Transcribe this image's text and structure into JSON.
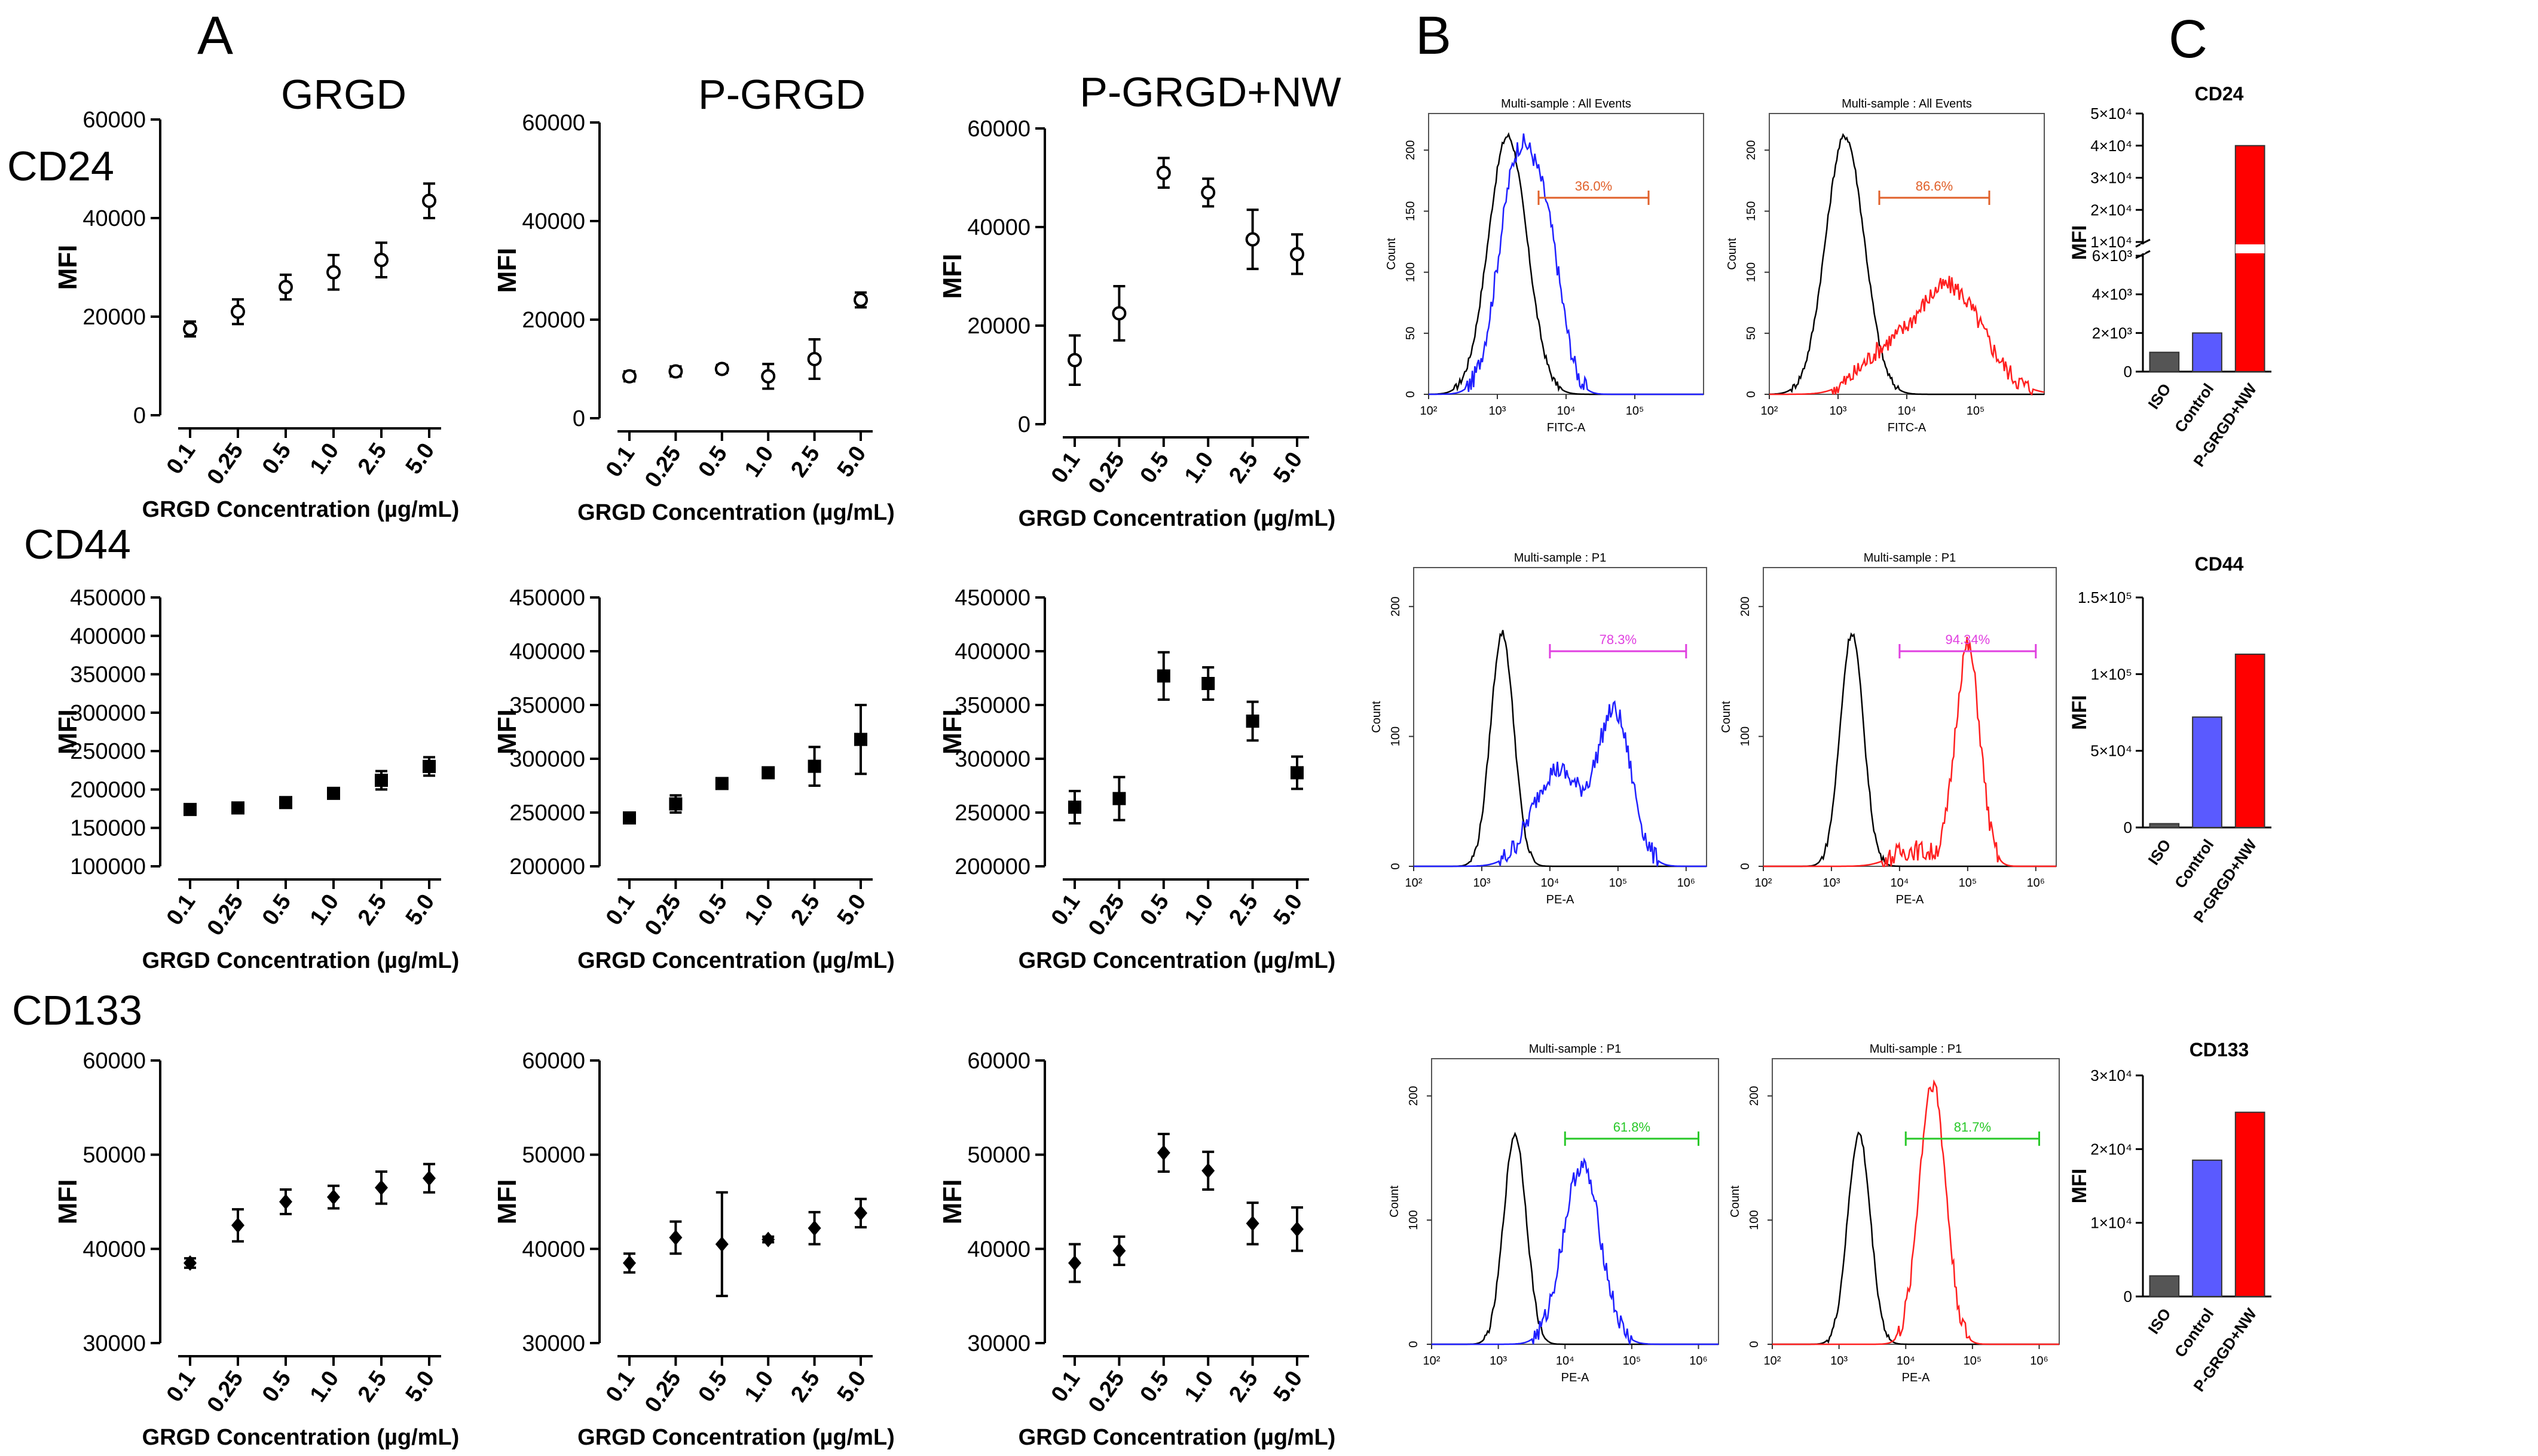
{
  "panel_letters": {
    "a": "A",
    "b": "B",
    "c": "C"
  },
  "column_titles": [
    "GRGD",
    "P-GRGD",
    "P-GRGD+NW"
  ],
  "row_labels": [
    "CD24",
    "CD44",
    "CD133"
  ],
  "colors": {
    "iso": "#555555",
    "control": "#5a5aff",
    "pgrgd_nw": "#ff0000",
    "blue_hist": "#1f1fff",
    "red_hist": "#ff1f1f",
    "gate_orange": "#e0602a",
    "gate_magenta": "#e040e0",
    "gate_green": "#28c828"
  },
  "chart_data": [
    {
      "id": "a-cd24-grgd",
      "type": "scatter",
      "marker": "open-circle",
      "title": "GRGD",
      "xlabel": "GRGD Concentration (µg/mL)",
      "ylabel": "MFI",
      "categories": [
        "0.1",
        "0.25",
        "0.5",
        "1.0",
        "2.5",
        "5.0"
      ],
      "values": [
        17500,
        21000,
        26000,
        29000,
        31500,
        43500
      ],
      "errors": [
        1500,
        2500,
        2500,
        3500,
        3500,
        3500
      ],
      "ylim": [
        0,
        60000
      ],
      "yticks": [
        0,
        20000,
        40000,
        60000
      ],
      "ytick_labels": [
        "0",
        "20000",
        "40000",
        "60000"
      ]
    },
    {
      "id": "a-cd24-pgrgd",
      "type": "scatter",
      "marker": "open-circle",
      "title": "P-GRGD",
      "xlabel": "GRGD Concentration (µg/mL)",
      "ylabel": "MFI",
      "categories": [
        "0.1",
        "0.25",
        "0.5",
        "1.0",
        "2.5",
        "5.0"
      ],
      "values": [
        8500,
        9500,
        10000,
        8500,
        12000,
        24000
      ],
      "errors": [
        1000,
        1000,
        800,
        2500,
        4000,
        1500
      ],
      "ylim": [
        0,
        60000
      ],
      "yticks": [
        0,
        20000,
        40000,
        60000
      ],
      "ytick_labels": [
        "0",
        "20000",
        "40000",
        "60000"
      ]
    },
    {
      "id": "a-cd24-pgrgdnw",
      "type": "scatter",
      "marker": "open-circle",
      "title": "P-GRGD+NW",
      "xlabel": "GRGD Concentration (µg/mL)",
      "ylabel": "MFI",
      "categories": [
        "0.1",
        "0.25",
        "0.5",
        "1.0",
        "2.5",
        "5.0"
      ],
      "values": [
        13000,
        22500,
        51000,
        47000,
        37500,
        34500
      ],
      "errors": [
        5000,
        5500,
        3000,
        2800,
        6000,
        4000
      ],
      "ylim": [
        0,
        60000
      ],
      "yticks": [
        0,
        20000,
        40000,
        60000
      ],
      "ytick_labels": [
        "0",
        "20000",
        "40000",
        "60000"
      ]
    },
    {
      "id": "a-cd44-grgd",
      "type": "scatter",
      "marker": "filled-square",
      "xlabel": "GRGD Concentration (µg/mL)",
      "ylabel": "MFI",
      "categories": [
        "0.1",
        "0.25",
        "0.5",
        "1.0",
        "2.5",
        "5.0"
      ],
      "values": [
        174000,
        176000,
        183000,
        195000,
        212000,
        230000
      ],
      "errors": [
        3000,
        6000,
        3000,
        6000,
        12000,
        12000
      ],
      "ylim": [
        100000,
        450000
      ],
      "yticks": [
        100000,
        150000,
        200000,
        250000,
        300000,
        350000,
        400000,
        450000
      ],
      "ytick_labels": [
        "100000",
        "150000",
        "200000",
        "250000",
        "300000",
        "350000",
        "400000",
        "450000"
      ]
    },
    {
      "id": "a-cd44-pgrgd",
      "type": "scatter",
      "marker": "filled-square",
      "xlabel": "GRGD Concentration (µg/mL)",
      "ylabel": "MFI",
      "categories": [
        "0.1",
        "0.25",
        "0.5",
        "1.0",
        "2.5",
        "5.0"
      ],
      "values": [
        245000,
        258000,
        277000,
        287000,
        293000,
        318000
      ],
      "errors": [
        3000,
        8000,
        3000,
        3000,
        18000,
        32000
      ],
      "ylim": [
        200000,
        450000
      ],
      "yticks": [
        200000,
        250000,
        300000,
        350000,
        400000,
        450000
      ],
      "ytick_labels": [
        "200000",
        "250000",
        "300000",
        "350000",
        "400000",
        "450000"
      ]
    },
    {
      "id": "a-cd44-pgrgdnw",
      "type": "scatter",
      "marker": "filled-square",
      "xlabel": "GRGD Concentration (µg/mL)",
      "ylabel": "MFI",
      "categories": [
        "0.1",
        "0.25",
        "0.5",
        "1.0",
        "2.5",
        "5.0"
      ],
      "values": [
        255000,
        263000,
        377000,
        370000,
        335000,
        287000
      ],
      "errors": [
        15000,
        20000,
        22000,
        15000,
        18000,
        15000
      ],
      "ylim": [
        200000,
        450000
      ],
      "yticks": [
        200000,
        250000,
        300000,
        350000,
        400000,
        450000
      ],
      "ytick_labels": [
        "200000",
        "250000",
        "300000",
        "350000",
        "400000",
        "450000"
      ]
    },
    {
      "id": "a-cd133-grgd",
      "type": "scatter",
      "marker": "filled-diamond",
      "xlabel": "GRGD Concentration (µg/mL)",
      "ylabel": "MFI",
      "categories": [
        "0.1",
        "0.25",
        "0.5",
        "1.0",
        "2.5",
        "5.0"
      ],
      "values": [
        38500,
        42500,
        45000,
        45500,
        46500,
        47500
      ],
      "errors": [
        500,
        1700,
        1300,
        1200,
        1700,
        1500
      ],
      "ylim": [
        30000,
        60000
      ],
      "yticks": [
        30000,
        40000,
        50000,
        60000
      ],
      "ytick_labels": [
        "30000",
        "40000",
        "50000",
        "60000"
      ]
    },
    {
      "id": "a-cd133-pgrgd",
      "type": "scatter",
      "marker": "filled-diamond",
      "xlabel": "GRGD Concentration (µg/mL)",
      "ylabel": "MFI",
      "categories": [
        "0.1",
        "0.25",
        "0.5",
        "1.0",
        "2.5",
        "5.0"
      ],
      "values": [
        38500,
        41200,
        40500,
        41000,
        42200,
        43800
      ],
      "errors": [
        1000,
        1700,
        5500,
        300,
        1700,
        1500
      ],
      "ylim": [
        30000,
        60000
      ],
      "yticks": [
        30000,
        40000,
        50000,
        60000
      ],
      "ytick_labels": [
        "30000",
        "40000",
        "50000",
        "60000"
      ]
    },
    {
      "id": "a-cd133-pgrgdnw",
      "type": "scatter",
      "marker": "filled-diamond",
      "xlabel": "GRGD Concentration (µg/mL)",
      "ylabel": "MFI",
      "categories": [
        "0.1",
        "0.25",
        "0.5",
        "1.0",
        "2.5",
        "5.0"
      ],
      "values": [
        38500,
        39800,
        50200,
        48300,
        42700,
        42100
      ],
      "errors": [
        2000,
        1500,
        2000,
        2000,
        2200,
        2300
      ],
      "ylim": [
        30000,
        60000
      ],
      "yticks": [
        30000,
        40000,
        50000,
        60000
      ],
      "ytick_labels": [
        "30000",
        "40000",
        "50000",
        "60000"
      ]
    },
    {
      "id": "b-cd24-1",
      "type": "histogram",
      "title": "Multi-sample : All Events",
      "xlabel": "FITC-A",
      "ylabel": "Count",
      "gate_label": "36.0%",
      "gate_color": "orange",
      "overlay_color": "blue",
      "ymax": 230,
      "yticks": [
        0,
        50,
        100,
        150,
        200
      ],
      "xticks": [
        "10²",
        "10³",
        "10⁴",
        "10⁵"
      ],
      "gate_range_log": [
        3.6,
        5.2
      ],
      "control_peak_log": 3.15,
      "overlay_peak_log": 3.3
    },
    {
      "id": "b-cd24-2",
      "type": "histogram",
      "title": "Multi-sample : All Events",
      "xlabel": "FITC-A",
      "ylabel": "Count",
      "gate_label": "86.6%",
      "gate_color": "orange",
      "overlay_color": "red",
      "ymax": 230,
      "yticks": [
        0,
        50,
        100,
        150,
        200
      ],
      "xticks": [
        "10²",
        "10³",
        "10⁴",
        "10⁵"
      ],
      "gate_range_log": [
        3.6,
        5.2
      ],
      "control_peak_log": 3.1,
      "overlay_peak_log": 4.6
    },
    {
      "id": "b-cd44-1",
      "type": "histogram",
      "title": "Multi-sample : P1",
      "xlabel": "PE-A",
      "ylabel": "Count",
      "gate_label": "78.3%",
      "gate_color": "magenta",
      "overlay_color": "blue",
      "ymax": 230,
      "yticks": [
        0,
        100,
        200
      ],
      "xticks": [
        "10²",
        "10³",
        "10⁴",
        "10⁵",
        "10⁶"
      ],
      "gate_range_log": [
        4.0,
        6.0
      ],
      "control_peak_log": 3.3,
      "overlay_peak_log": 4.95
    },
    {
      "id": "b-cd44-2",
      "type": "histogram",
      "title": "Multi-sample : P1",
      "xlabel": "PE-A",
      "ylabel": "Count",
      "gate_label": "94.34%",
      "gate_color": "magenta",
      "overlay_color": "red",
      "ymax": 230,
      "yticks": [
        0,
        100,
        200
      ],
      "xticks": [
        "10²",
        "10³",
        "10⁴",
        "10⁵",
        "10⁶"
      ],
      "gate_range_log": [
        4.0,
        6.0
      ],
      "control_peak_log": 3.3,
      "overlay_peak_log": 5.0
    },
    {
      "id": "b-cd133-1",
      "type": "histogram",
      "title": "Multi-sample : P1",
      "xlabel": "PE-A",
      "ylabel": "Count",
      "gate_label": "61.8%",
      "gate_color": "green",
      "overlay_color": "blue",
      "ymax": 230,
      "yticks": [
        0,
        100,
        200
      ],
      "xticks": [
        "10²",
        "10³",
        "10⁴",
        "10⁵",
        "10⁶"
      ],
      "gate_range_log": [
        4.0,
        6.0
      ],
      "control_peak_log": 3.25,
      "overlay_peak_log": 4.25
    },
    {
      "id": "b-cd133-2",
      "type": "histogram",
      "title": "Multi-sample : P1",
      "xlabel": "PE-A",
      "ylabel": "Count",
      "gate_label": "81.7%",
      "gate_color": "green",
      "overlay_color": "red",
      "ymax": 230,
      "yticks": [
        0,
        100,
        200
      ],
      "xticks": [
        "10²",
        "10³",
        "10⁴",
        "10⁵",
        "10⁶"
      ],
      "gate_range_log": [
        4.0,
        6.0
      ],
      "control_peak_log": 3.3,
      "overlay_peak_log": 4.4
    },
    {
      "id": "c-cd24",
      "type": "bar",
      "title": "CD24",
      "ylabel": "MFI",
      "categories": [
        "ISO",
        "Control",
        "P-GRGD+NW"
      ],
      "values": [
        1000,
        2000,
        40000
      ],
      "colors": [
        "iso",
        "control",
        "pgrgd_nw"
      ],
      "axis_break": true,
      "ytick_labels": [
        "0",
        "2×10³",
        "4×10³",
        "6×10³",
        "1×10⁴",
        "2×10⁴",
        "3×10⁴",
        "4×10⁴",
        "5×10⁴"
      ]
    },
    {
      "id": "c-cd44",
      "type": "bar",
      "title": "CD44",
      "ylabel": "MFI",
      "categories": [
        "ISO",
        "Control",
        "P-GRGD+NW"
      ],
      "values": [
        2500,
        72000,
        113000
      ],
      "colors": [
        "iso",
        "control",
        "pgrgd_nw"
      ],
      "ylim": [
        0,
        150000
      ],
      "yticks": [
        0,
        50000,
        100000,
        150000
      ],
      "ytick_labels": [
        "0",
        "5×10⁴",
        "1×10⁵",
        "1.5×10⁵"
      ]
    },
    {
      "id": "c-cd133",
      "type": "bar",
      "title": "CD133",
      "ylabel": "MFI",
      "categories": [
        "ISO",
        "Control",
        "P-GRGD+NW"
      ],
      "values": [
        2800,
        18500,
        25000
      ],
      "colors": [
        "iso",
        "control",
        "pgrgd_nw"
      ],
      "ylim": [
        0,
        30000
      ],
      "yticks": [
        0,
        10000,
        20000,
        30000
      ],
      "ytick_labels": [
        "0",
        "1×10⁴",
        "2×10⁴",
        "3×10⁴"
      ]
    }
  ]
}
